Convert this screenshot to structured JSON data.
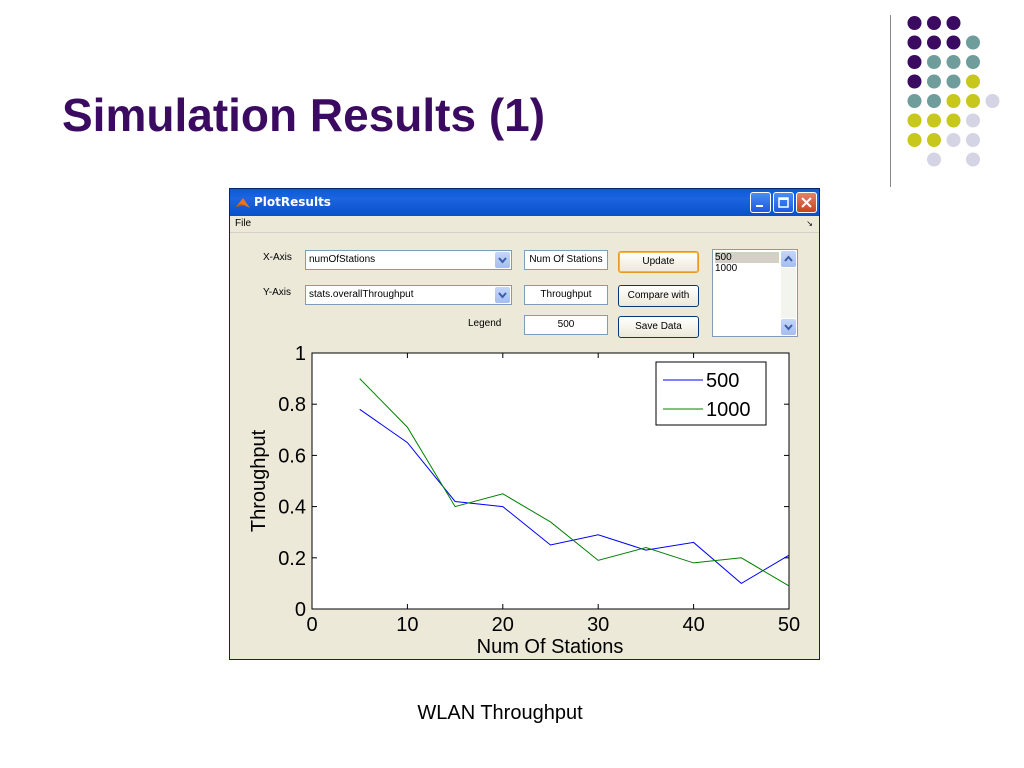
{
  "slide": {
    "title": "Simulation Results (1)",
    "caption": "WLAN Throughput",
    "title_color": "#3b0a61"
  },
  "window": {
    "title": "PlotResults",
    "menu": {
      "file": "File"
    },
    "x_axis": {
      "label": "X-Axis",
      "selected": "numOfStations",
      "text_value": "Num Of Stations"
    },
    "y_axis": {
      "label": "Y-Axis",
      "selected": "stats.overallThroughput",
      "text_value": "Throughput"
    },
    "legend": {
      "label": "Legend",
      "text_value": "500"
    },
    "buttons": {
      "update": "Update",
      "compare": "Compare with",
      "save": "Save Data"
    },
    "list_items": [
      "500",
      "1000"
    ]
  },
  "chart_data": {
    "type": "line",
    "xlabel": "Num Of Stations",
    "ylabel": "Throughput",
    "xlim": [
      0,
      50
    ],
    "ylim": [
      0,
      1
    ],
    "x_ticks": [
      "0",
      "10",
      "20",
      "30",
      "40",
      "50"
    ],
    "y_ticks": [
      "0",
      "0.2",
      "0.4",
      "0.6",
      "0.8",
      "1"
    ],
    "legend_position": "top-right",
    "x": [
      5,
      10,
      15,
      20,
      25,
      30,
      35,
      40,
      45,
      50
    ],
    "series": [
      {
        "name": "500",
        "color": "#0000ff",
        "values": [
          0.78,
          0.65,
          0.42,
          0.4,
          0.25,
          0.29,
          0.23,
          0.26,
          0.1,
          0.21
        ]
      },
      {
        "name": "1000",
        "color": "#008000",
        "values": [
          0.9,
          0.71,
          0.4,
          0.45,
          0.34,
          0.19,
          0.24,
          0.18,
          0.2,
          0.09
        ]
      }
    ]
  }
}
